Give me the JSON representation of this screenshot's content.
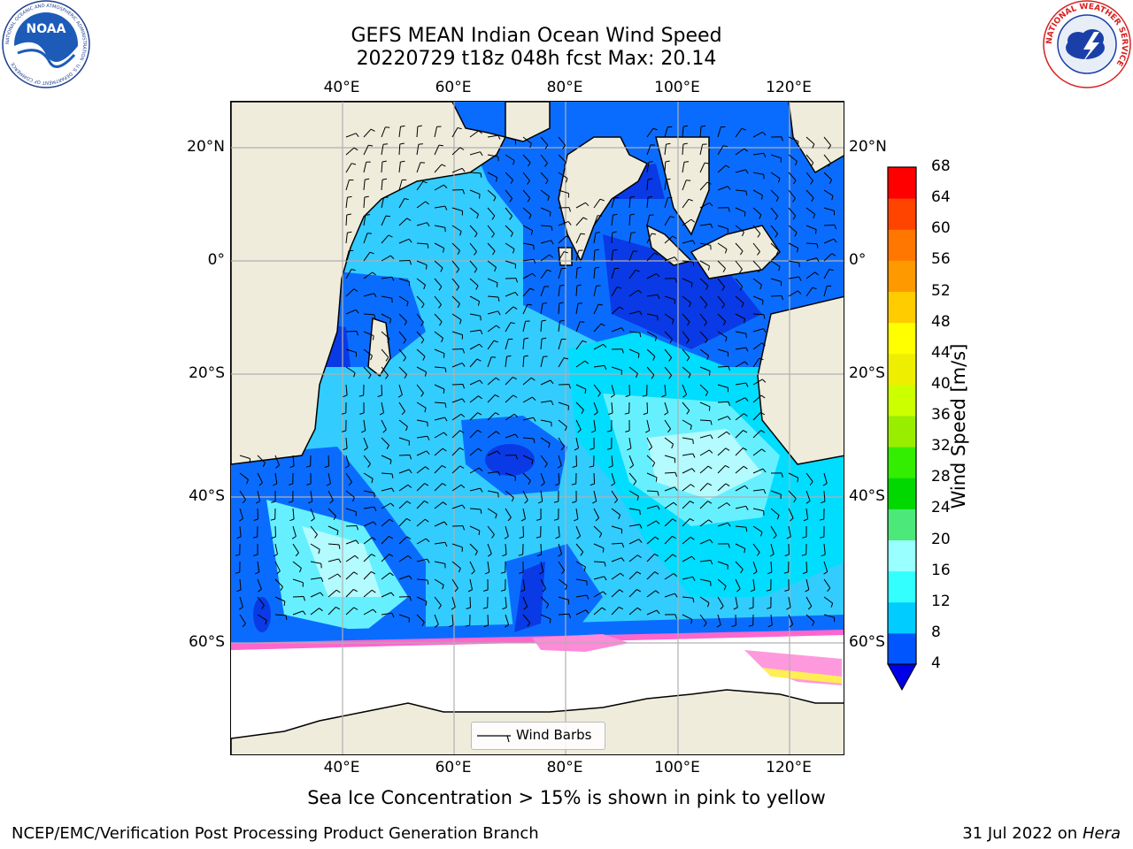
{
  "header": {
    "title_line1": "GEFS MEAN Indian Ocean Wind Speed",
    "title_line2": "20220729 t18z 048h fcst   Max: 20.14"
  },
  "logos": {
    "left_text": "NOAA",
    "left_ring_text": "NATIONAL OCEANIC AND ATMOSPHERIC ADMINISTRATION · U.S. DEPARTMENT OF COMMERCE",
    "right_ring_text": "NATIONAL WEATHER SERVICE"
  },
  "map": {
    "lon_ticks_top": [
      "40°E",
      "60°E",
      "80°E",
      "100°E",
      "120°E"
    ],
    "lon_ticks_bottom": [
      "40°E",
      "60°E",
      "80°E",
      "100°E",
      "120°E"
    ],
    "lat_ticks_left": [
      "20°N",
      "0°",
      "20°S",
      "40°S",
      "60°S"
    ],
    "lat_ticks_right": [
      "20°N",
      "0°",
      "20°S",
      "40°S",
      "60°S"
    ],
    "legend_label": "Wind Barbs",
    "colors": {
      "land": "#efecdc",
      "ice": "#ffffff",
      "grid": "#b0b0b0"
    }
  },
  "colorbar": {
    "label": "Wind Speed [m/s]",
    "ticks": [
      "4",
      "8",
      "12",
      "16",
      "20",
      "24",
      "28",
      "32",
      "36",
      "40",
      "44",
      "48",
      "52",
      "56",
      "60",
      "64",
      "68"
    ],
    "colors": [
      "#0000e6",
      "#0033ff",
      "#0099ff",
      "#00e5ff",
      "#44ffff",
      "#99ffff",
      "#4ce87a",
      "#00d800",
      "#33ee00",
      "#99ee00",
      "#ccff00",
      "#eeee00",
      "#ffff00",
      "#ffcc00",
      "#ff9900",
      "#ff7700",
      "#ff5500",
      "#ff2200",
      "#ff0000"
    ]
  },
  "caption": "Sea Ice Concentration > 15% is shown in pink to yellow",
  "footer": {
    "left": "NCEP/EMC/Verification Post Processing Product Generation Branch",
    "right_prefix": "31 Jul 2022 on ",
    "right_machine": "Hera"
  }
}
